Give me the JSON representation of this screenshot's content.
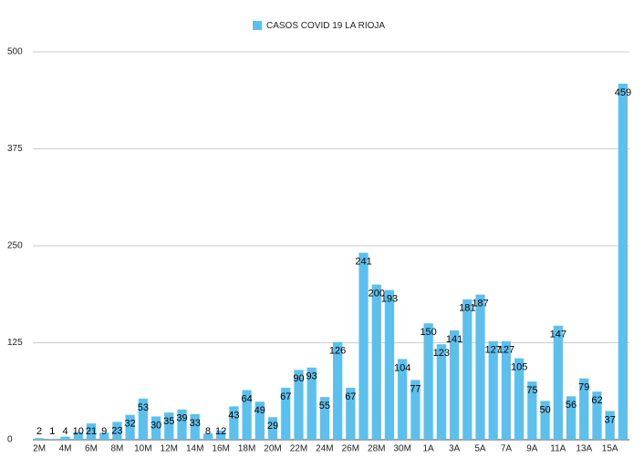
{
  "chart_data": {
    "type": "bar",
    "legend": "CASOS COVID 19 LA RIOJA",
    "color": "#5bc0ee",
    "categories": [
      "2M",
      null,
      "4M",
      null,
      "6M",
      null,
      "8M",
      null,
      "10M",
      null,
      "12M",
      null,
      "14M",
      null,
      "16M",
      null,
      "18M",
      null,
      "20M",
      null,
      "22M",
      null,
      "24M",
      null,
      "26M",
      null,
      "28M",
      null,
      "30M",
      null,
      "1A",
      null,
      "3A",
      null,
      "5A",
      null,
      "7A",
      null,
      "9A",
      null,
      "11A",
      null,
      "13A",
      null,
      "15A",
      null
    ],
    "values": [
      2,
      1,
      4,
      10,
      21,
      9,
      23,
      32,
      53,
      30,
      35,
      39,
      33,
      8,
      12,
      43,
      64,
      49,
      29,
      67,
      90,
      93,
      55,
      126,
      67,
      241,
      200,
      193,
      104,
      77,
      150,
      123,
      141,
      181,
      187,
      127,
      127,
      105,
      75,
      50,
      147,
      56,
      79,
      62,
      37,
      459
    ],
    "ylim": [
      0,
      500
    ],
    "yticks": [
      0,
      125,
      250,
      375,
      500
    ],
    "grid": true
  }
}
